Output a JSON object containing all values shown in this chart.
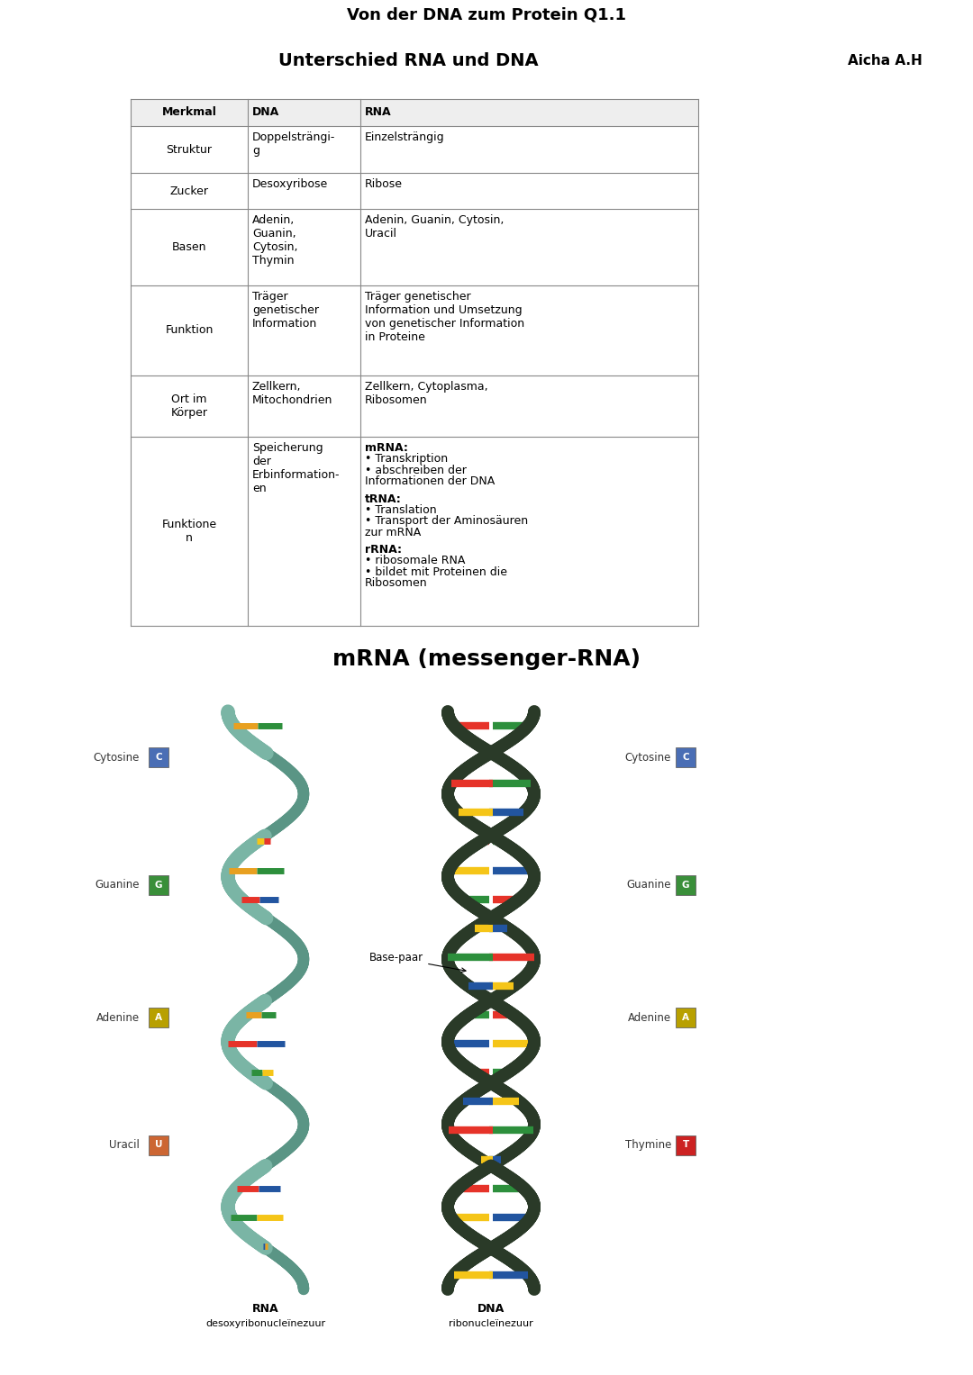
{
  "header_text": "Von der DNA zum Protein Q1.1",
  "header_bg": "#c8c8e8",
  "subheader_text": "Unterschied RNA und DNA",
  "subheader_author": "Aicha A.H",
  "subheader_bg": "#c8c8e8",
  "section_title": "mRNA (messenger-RNA)",
  "table_headers": [
    "Merkmal",
    "DNA",
    "RNA"
  ],
  "table_rows": [
    [
      "Struktur",
      "Doppelsträngi-\ng",
      "Einzelsträngig"
    ],
    [
      "Zucker",
      "Desoxyribose",
      "Ribose"
    ],
    [
      "Basen",
      "Adenin,\nGuanin,\nCytosin,\nThymin",
      "Adenin, Guanin, Cytosin,\nUracil"
    ],
    [
      "Funktion",
      "Träger\ngenetischer\nInformation",
      "Träger genetischer\nInformation und Umsetzung\nvon genetischer Information\nin Proteine"
    ],
    [
      "Ort im\nKörper",
      "Zellkern,\nMitochondrien",
      "Zellkern, Cytoplasma,\nRibosomen"
    ],
    [
      "Funktione-\nn",
      "Speicherung\nder\nErbinformation-\nen",
      "mRNA:\n• Transkription\n• abschreiben der\nInformationen der DNA\n\ntRNA:\n• Translation\n• Transport der Aminosäuren\nzur mRNA\n\nrRNA:\n• ribosomale RNA\n• bildet mit Proteinen die\nRibosomen"
    ]
  ],
  "bg_color": "#ffffff",
  "text_color": "#000000",
  "font_size_header": 13,
  "font_size_table": 9,
  "font_size_subheader": 14,
  "font_size_section": 18,
  "label_left": [
    [
      "Cytosine",
      "C",
      "#4a6eb5"
    ],
    [
      "Guanine",
      "G",
      "#3a8f3a"
    ],
    [
      "Adenine",
      "A",
      "#b8a000"
    ],
    [
      "Uracil",
      "U",
      "#cc6633"
    ]
  ],
  "label_right": [
    [
      "Cytosine",
      "C",
      "#4a6eb5"
    ],
    [
      "Guanine",
      "G",
      "#3a8f3a"
    ],
    [
      "Adenine",
      "A",
      "#b8a000"
    ],
    [
      "Thymine",
      "T",
      "#cc2222"
    ]
  ],
  "rna_label": "RNA",
  "rna_sublabel": "desoxyribonucleïnezuur",
  "dna_label": "DNA",
  "dna_sublabel": "ribonucleïnezuur",
  "basepaar_label": "Base-paar"
}
